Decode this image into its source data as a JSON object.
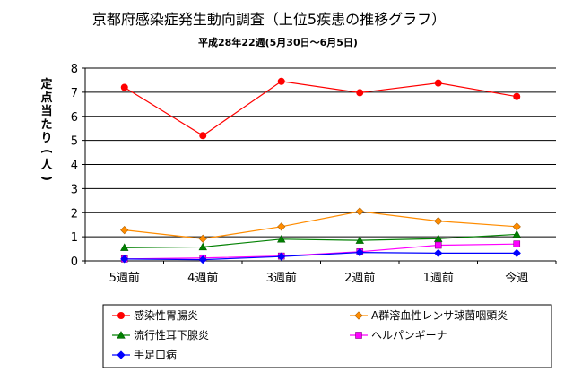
{
  "chart_data": {
    "type": "line",
    "title": "京都府感染症発生動向調査（上位5疾患の推移グラフ）",
    "subtitle": "平成28年22週(5月30日～6月5日)",
    "ylabel": "定点当たり(人)",
    "xlabel": "",
    "categories": [
      "5週前",
      "4週前",
      "3週前",
      "2週前",
      "1週前",
      "今週"
    ],
    "ylim": [
      0,
      8
    ],
    "yticks": [
      "0",
      "1",
      "2",
      "3",
      "4",
      "5",
      "6",
      "7",
      "8"
    ],
    "grid": true,
    "legend_position": "bottom",
    "series": [
      {
        "name": "感染性胃腸炎",
        "color": "#ff0000",
        "marker": "circle",
        "values": [
          7.2,
          5.2,
          7.45,
          6.98,
          7.38,
          6.82
        ]
      },
      {
        "name": "A群溶血性レンサ球菌咽頭炎",
        "color": "#ff8c00",
        "marker": "diamond",
        "values": [
          1.28,
          0.92,
          1.42,
          2.05,
          1.65,
          1.42
        ]
      },
      {
        "name": "流行性耳下腺炎",
        "color": "#008000",
        "marker": "triangle",
        "values": [
          0.55,
          0.58,
          0.9,
          0.85,
          0.92,
          1.1
        ]
      },
      {
        "name": "ヘルパンギーナ",
        "color": "#ff00ff",
        "marker": "square",
        "values": [
          0.08,
          0.12,
          0.2,
          0.38,
          0.65,
          0.7
        ]
      },
      {
        "name": "手足口病",
        "color": "#0000ff",
        "marker": "diamond",
        "values": [
          0.08,
          0.05,
          0.18,
          0.35,
          0.32,
          0.32
        ]
      }
    ]
  }
}
